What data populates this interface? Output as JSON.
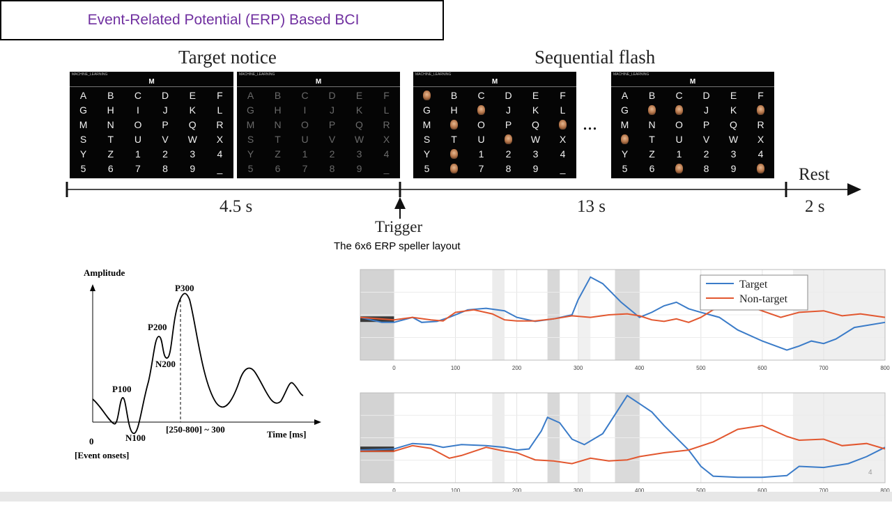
{
  "slide": {
    "title": "Event-Related Potential (ERP) Based BCI",
    "page_number": "4",
    "caption": "The 6x6 ERP speller layout"
  },
  "timeline": {
    "label_left": "Target notice",
    "label_right": "Sequential flash",
    "ellipsis": "...",
    "rest_label": "Rest",
    "trigger_label": "Trigger",
    "durations": [
      "4.5 s",
      "13 s",
      "2 s"
    ]
  },
  "speller": {
    "top_text": "MACHINE_LEARNING",
    "current_char": "M",
    "chars": [
      "A",
      "B",
      "C",
      "D",
      "E",
      "F",
      "G",
      "H",
      "I",
      "J",
      "K",
      "L",
      "M",
      "N",
      "O",
      "P",
      "Q",
      "R",
      "S",
      "T",
      "U",
      "V",
      "W",
      "X",
      "Y",
      "Z",
      "1",
      "2",
      "3",
      "4",
      "5",
      "6",
      "7",
      "8",
      "9",
      "_"
    ],
    "panels": [
      {
        "style": "normal",
        "flashed": []
      },
      {
        "style": "dim",
        "flashed": []
      },
      {
        "style": "normal",
        "flashed": [
          0,
          8,
          13,
          17,
          21,
          25,
          31
        ]
      },
      {
        "style": "normal",
        "flashed": [
          7,
          8,
          11,
          18,
          32,
          35
        ]
      }
    ],
    "flash_icon": "face-icon"
  },
  "erp_diagram": {
    "y_axis_label": "Amplitude",
    "x_axis_label": "Time [ms]",
    "origin_label": "0",
    "onset_label": "[Event onsets]",
    "window_label": "[250-800] ~ 300",
    "components": [
      "P100",
      "N100",
      "P200",
      "N200",
      "P300"
    ]
  },
  "chart_data": [
    {
      "type": "line",
      "x_ticks": [
        0,
        100,
        200,
        300,
        400,
        500,
        600,
        700,
        800
      ],
      "xlim": [
        -55,
        800
      ],
      "legend": "top-right",
      "grid": true,
      "series": [
        {
          "name": "Target",
          "color": "#3a7bc8",
          "x": [
            -55,
            -20,
            0,
            30,
            45,
            70,
            90,
            120,
            150,
            180,
            200,
            230,
            260,
            290,
            300,
            320,
            340,
            370,
            400,
            420,
            440,
            460,
            480,
            500,
            530,
            560,
            600,
            640,
            660,
            680,
            700,
            720,
            750,
            800
          ],
          "y": [
            0.05,
            -0.05,
            -0.05,
            0.05,
            -0.05,
            -0.03,
            0.05,
            0.2,
            0.23,
            0.18,
            0.05,
            -0.03,
            0.02,
            0.1,
            0.4,
            0.85,
            0.72,
            0.35,
            0.05,
            0.15,
            0.28,
            0.35,
            0.22,
            0.15,
            0.05,
            -0.2,
            -0.42,
            -0.6,
            -0.52,
            -0.42,
            -0.47,
            -0.38,
            -0.15,
            -0.05
          ]
        },
        {
          "name": "Non-target",
          "color": "#e2572f",
          "x": [
            -55,
            0,
            30,
            60,
            80,
            100,
            130,
            160,
            180,
            200,
            230,
            260,
            290,
            320,
            350,
            380,
            400,
            420,
            440,
            460,
            480,
            500,
            520,
            550,
            590,
            630,
            660,
            700,
            730,
            760,
            800
          ],
          "y": [
            0.05,
            0.0,
            0.05,
            0.0,
            -0.02,
            0.15,
            0.2,
            0.12,
            0.0,
            -0.02,
            -0.02,
            0.02,
            0.08,
            0.05,
            0.1,
            0.12,
            0.08,
            0.0,
            -0.03,
            0.02,
            -0.05,
            0.05,
            0.2,
            0.25,
            0.22,
            0.05,
            0.15,
            0.18,
            0.08,
            0.12,
            0.05
          ]
        }
      ]
    },
    {
      "type": "line",
      "x_ticks": [
        0,
        100,
        200,
        300,
        400,
        500,
        600,
        700,
        800
      ],
      "xlim": [
        -55,
        800
      ],
      "legend": "none",
      "grid": true,
      "series": [
        {
          "name": "Target",
          "color": "#3a7bc8",
          "x": [
            -55,
            0,
            30,
            60,
            80,
            110,
            150,
            180,
            200,
            220,
            240,
            250,
            270,
            290,
            310,
            340,
            380,
            400,
            420,
            440,
            480,
            500,
            520,
            560,
            600,
            640,
            660,
            700,
            740,
            770,
            800
          ],
          "y": [
            0.0,
            0.02,
            0.12,
            0.1,
            0.05,
            0.1,
            0.08,
            0.05,
            0.0,
            0.02,
            0.35,
            0.6,
            0.5,
            0.2,
            0.1,
            0.3,
            1.0,
            0.85,
            0.7,
            0.45,
            0.0,
            -0.3,
            -0.48,
            -0.5,
            -0.5,
            -0.47,
            -0.3,
            -0.32,
            -0.25,
            -0.12,
            0.05
          ]
        },
        {
          "name": "Non-target",
          "color": "#e2572f",
          "x": [
            -55,
            0,
            30,
            60,
            90,
            110,
            150,
            180,
            200,
            230,
            260,
            290,
            320,
            350,
            380,
            400,
            440,
            480,
            520,
            560,
            600,
            640,
            660,
            700,
            730,
            770,
            800
          ],
          "y": [
            -0.02,
            -0.02,
            0.08,
            0.03,
            -0.15,
            -0.1,
            0.05,
            -0.02,
            -0.05,
            -0.18,
            -0.2,
            -0.25,
            -0.15,
            -0.2,
            -0.18,
            -0.12,
            -0.05,
            0.0,
            0.15,
            0.38,
            0.45,
            0.25,
            0.18,
            0.2,
            0.08,
            0.12,
            0.02
          ]
        }
      ]
    }
  ]
}
